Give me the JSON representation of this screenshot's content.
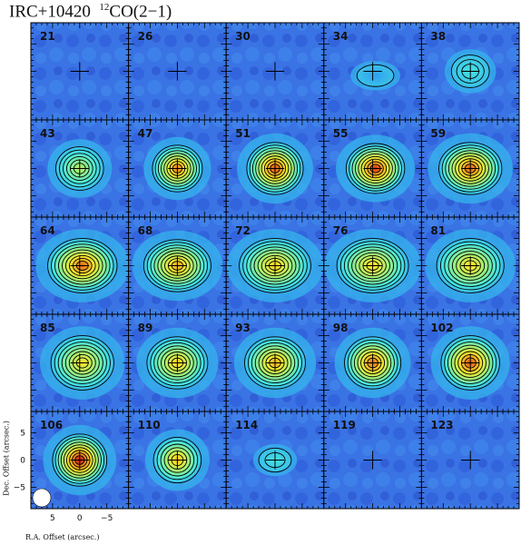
{
  "header": {
    "source": "IRC+10420",
    "isotope_superscript": "12",
    "line": "CO(2−1)"
  },
  "axes": {
    "ylabel": "Dec. Offset (arcsec.)",
    "xlabel": "R.A. Offset (arcsec.)",
    "y_ticks": [
      "5",
      "0",
      "−5"
    ],
    "x_ticks": [
      "5",
      "0",
      "−5"
    ]
  },
  "chart_data": {
    "type": "heatmap",
    "layout": "channel-map grid, 5 columns x 5 rows",
    "title": "IRC+10420 12CO(2−1)",
    "xlabel": "R.A. Offset (arcsec.)",
    "ylabel": "Dec. Offset (arcsec.)",
    "xlim": [
      9,
      -9
    ],
    "ylim": [
      -9,
      9
    ],
    "colormap": [
      "#2846d8",
      "#2e9cf2",
      "#46e6e0",
      "#9ef07a",
      "#f4e82c",
      "#f08c1c",
      "#c81414"
    ],
    "beam_marker": "white filled circle, lower-left of panel 106",
    "channels": [
      {
        "label": "21",
        "peak": 0.0,
        "levels": 0,
        "rx": 0,
        "ry": 0,
        "dx": 0,
        "dy": 0
      },
      {
        "label": "26",
        "peak": 0.0,
        "levels": 0,
        "rx": 0,
        "ry": 0,
        "dx": 0,
        "dy": 0
      },
      {
        "label": "30",
        "peak": 0.0,
        "levels": 0,
        "rx": 0,
        "ry": 0,
        "dx": 0,
        "dy": 0
      },
      {
        "label": "34",
        "peak": 0.18,
        "levels": 1,
        "rx": 3.4,
        "ry": 2.0,
        "dx": 0.5,
        "dy": -0.8
      },
      {
        "label": "38",
        "peak": 0.32,
        "levels": 3,
        "rx": 3.5,
        "ry": 3.0,
        "dx": 0,
        "dy": 0
      },
      {
        "label": "43",
        "peak": 0.55,
        "levels": 6,
        "rx": 4.4,
        "ry": 4.0,
        "dx": 0,
        "dy": 0
      },
      {
        "label": "47",
        "peak": 0.85,
        "levels": 8,
        "rx": 4.6,
        "ry": 4.3,
        "dx": 0,
        "dy": 0
      },
      {
        "label": "51",
        "peak": 0.92,
        "levels": 9,
        "rx": 5.2,
        "ry": 4.8,
        "dx": 0,
        "dy": 0
      },
      {
        "label": "55",
        "peak": 0.95,
        "levels": 9,
        "rx": 5.4,
        "ry": 4.6,
        "dx": 0.5,
        "dy": 0
      },
      {
        "label": "59",
        "peak": 0.9,
        "levels": 9,
        "rx": 5.8,
        "ry": 4.8,
        "dx": 0,
        "dy": 0
      },
      {
        "label": "64",
        "peak": 0.88,
        "levels": 9,
        "rx": 6.4,
        "ry": 5.0,
        "dx": 0.5,
        "dy": 0
      },
      {
        "label": "68",
        "peak": 0.78,
        "levels": 9,
        "rx": 6.2,
        "ry": 4.8,
        "dx": 0,
        "dy": 0
      },
      {
        "label": "72",
        "peak": 0.72,
        "levels": 9,
        "rx": 6.6,
        "ry": 5.0,
        "dx": 0,
        "dy": 0
      },
      {
        "label": "76",
        "peak": 0.7,
        "levels": 9,
        "rx": 6.6,
        "ry": 5.0,
        "dx": 0,
        "dy": 0
      },
      {
        "label": "81",
        "peak": 0.7,
        "levels": 8,
        "rx": 6.2,
        "ry": 5.0,
        "dx": 0,
        "dy": 0
      },
      {
        "label": "85",
        "peak": 0.68,
        "levels": 8,
        "rx": 5.8,
        "ry": 5.0,
        "dx": 0.5,
        "dy": 0
      },
      {
        "label": "89",
        "peak": 0.72,
        "levels": 8,
        "rx": 5.6,
        "ry": 4.8,
        "dx": 0,
        "dy": 0
      },
      {
        "label": "93",
        "peak": 0.78,
        "levels": 8,
        "rx": 5.6,
        "ry": 4.8,
        "dx": 0,
        "dy": 0
      },
      {
        "label": "98",
        "peak": 0.88,
        "levels": 8,
        "rx": 5.2,
        "ry": 4.8,
        "dx": 0,
        "dy": 0
      },
      {
        "label": "102",
        "peak": 0.92,
        "levels": 8,
        "rx": 5.4,
        "ry": 5.0,
        "dx": 0,
        "dy": 0
      },
      {
        "label": "106",
        "peak": 1.0,
        "levels": 9,
        "rx": 5.0,
        "ry": 4.8,
        "dx": 0,
        "dy": 0
      },
      {
        "label": "110",
        "peak": 0.75,
        "levels": 6,
        "rx": 4.4,
        "ry": 4.2,
        "dx": 0,
        "dy": 0
      },
      {
        "label": "114",
        "peak": 0.32,
        "levels": 2,
        "rx": 3.0,
        "ry": 2.2,
        "dx": 0,
        "dy": 0
      },
      {
        "label": "119",
        "peak": 0.0,
        "levels": 0,
        "rx": 0,
        "ry": 0,
        "dx": 0,
        "dy": 0
      },
      {
        "label": "123",
        "peak": 0.0,
        "levels": 0,
        "rx": 0,
        "ry": 0,
        "dx": 0,
        "dy": 0
      }
    ]
  }
}
